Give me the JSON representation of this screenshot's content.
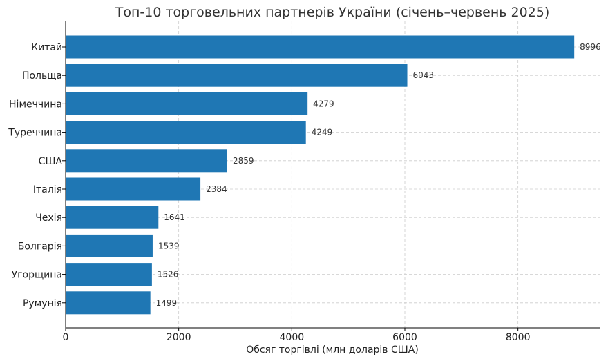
{
  "chart_data": {
    "type": "bar",
    "orientation": "horizontal",
    "title": "Топ-10 торговельних партнерів України (січень–червень 2025)",
    "xlabel": "Обсяг торгівлі (млн доларів США)",
    "ylabel": "",
    "categories": [
      "Китай",
      "Польща",
      "Німеччина",
      "Туреччина",
      "США",
      "Італія",
      "Чехія",
      "Болгарія",
      "Угорщина",
      "Румунія"
    ],
    "values": [
      8996,
      6043,
      4279,
      4249,
      2859,
      2384,
      1641,
      1539,
      1526,
      1499
    ],
    "data_labels": [
      "8996",
      "6043",
      "4279",
      "4249",
      "2859",
      "2384",
      "1641",
      "1539",
      "1526",
      "1499"
    ],
    "xlim": [
      0,
      9446
    ],
    "xticks": [
      0,
      2000,
      4000,
      6000,
      8000
    ],
    "xtick_labels": [
      "0",
      "2000",
      "4000",
      "6000",
      "8000"
    ],
    "grid": true,
    "bar_color": "#1f77b4"
  }
}
